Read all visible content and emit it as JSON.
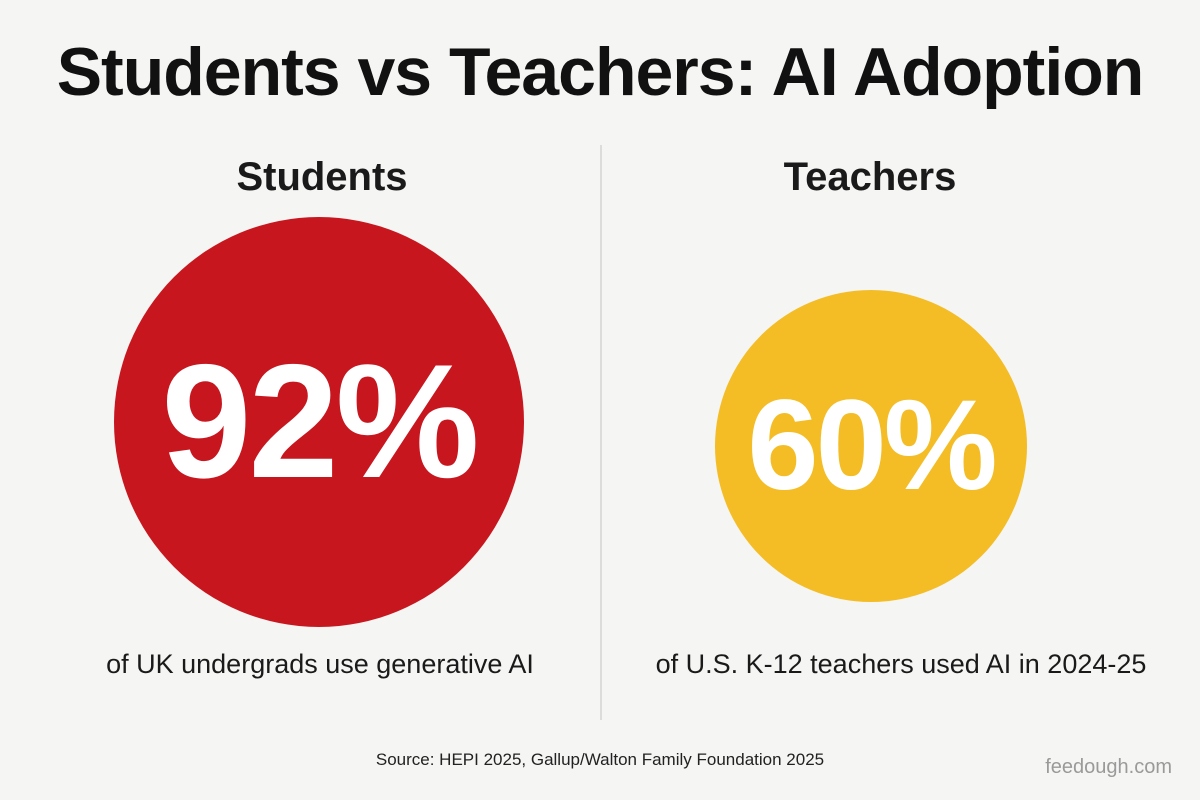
{
  "title": "Students vs Teachers: AI Adoption",
  "colors": {
    "students": "#c8161f",
    "teachers": "#f4bd26",
    "background": "#f5f5f3"
  },
  "chart_data": {
    "type": "infographic-comparison",
    "title": "Students vs Teachers: AI Adoption",
    "unit": "%",
    "series": [
      {
        "name": "Students",
        "value": 92,
        "label": "92%",
        "description": "of UK undergrads use generative AI",
        "color": "#c8161f"
      },
      {
        "name": "Teachers",
        "value": 60,
        "label": "60%",
        "description": "of U.S. K-12 teachers used AI in 2024-25",
        "color": "#f4bd26"
      }
    ]
  },
  "footer": {
    "source": "Source: HEPI 2025, Gallup/Walton Family Foundation 2025",
    "watermark": "feedough.com"
  }
}
